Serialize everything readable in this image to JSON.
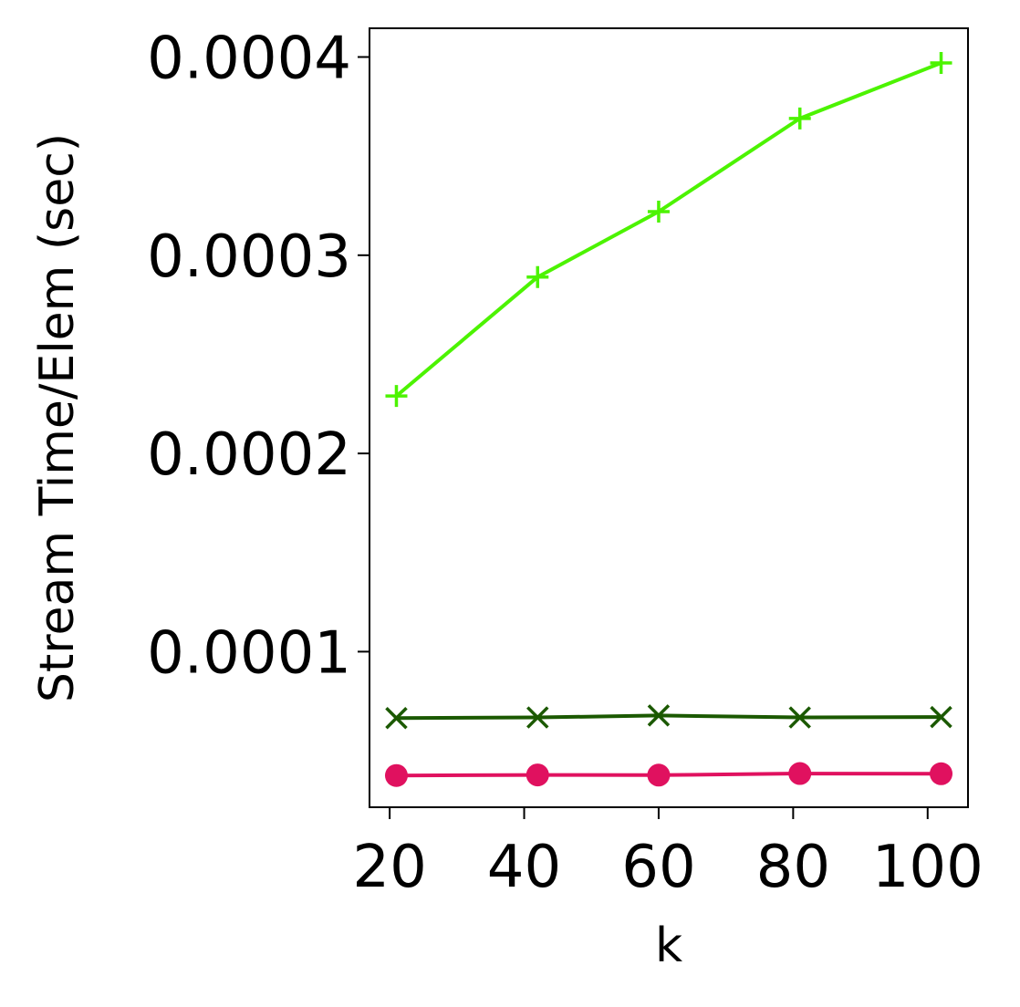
{
  "chart_data": {
    "type": "line",
    "title": "",
    "xlabel": "k",
    "ylabel": "Stream Time/Elem (sec)",
    "x": [
      21,
      42,
      60,
      81,
      102
    ],
    "xlim": [
      17,
      106
    ],
    "ylim": [
      2.15e-05,
      0.0004145
    ],
    "xticks": [
      20,
      40,
      60,
      80,
      100
    ],
    "xtick_labels": [
      "20",
      "40",
      "60",
      "80",
      "100"
    ],
    "yticks": [
      0.0001,
      0.0002,
      0.0003,
      0.0004
    ],
    "ytick_labels": [
      "0.0001",
      "0.0002",
      "0.0003",
      "0.0004"
    ],
    "grid": false,
    "legend": false,
    "series": [
      {
        "values": [
          0.000229,
          0.000289,
          0.000322,
          0.000369,
          0.000397
        ],
        "color": "#4cf300",
        "marker": "plus"
      },
      {
        "values": [
          6.65e-05,
          6.68e-05,
          6.78e-05,
          6.68e-05,
          6.7e-05
        ],
        "color": "#1b5900",
        "marker": "x"
      },
      {
        "values": [
          3.75e-05,
          3.78e-05,
          3.77e-05,
          3.85e-05,
          3.84e-05
        ],
        "color": "#e0115f",
        "marker": "circle"
      }
    ]
  }
}
